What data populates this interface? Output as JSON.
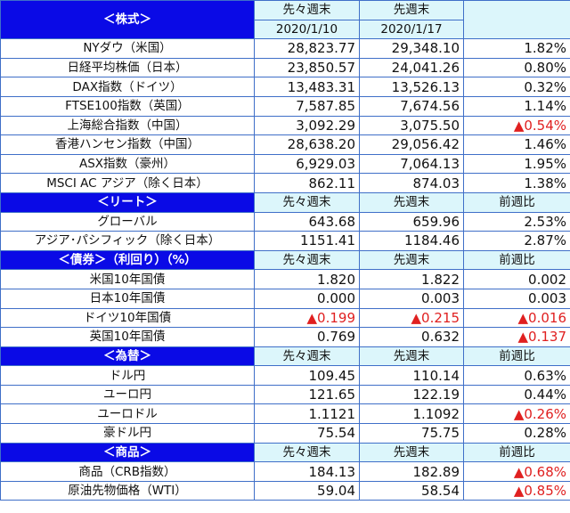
{
  "sections": [
    {
      "title": "＜株式＞",
      "headers": [
        "先々週末",
        "先週末",
        ""
      ],
      "dates": [
        "2020/1/10",
        "2020/1/17"
      ],
      "rows": [
        {
          "label": "NYダウ（米国）",
          "values": [
            "28,823.77",
            "29,348.10",
            "1.82%"
          ]
        },
        {
          "label": "日経平均株価（日本）",
          "values": [
            "23,850.57",
            "24,041.26",
            "0.80%"
          ]
        },
        {
          "label": "DAX指数（ドイツ）",
          "values": [
            "13,483.31",
            "13,526.13",
            "0.32%"
          ]
        },
        {
          "label": "FTSE100指数（英国）",
          "values": [
            "7,587.85",
            "7,674.56",
            "1.14%"
          ]
        },
        {
          "label": "上海総合指数（中国）",
          "values": [
            "3,092.29",
            "3,075.50",
            "▲0.54%"
          ]
        },
        {
          "label": "香港ハンセン指数（中国）",
          "values": [
            "28,638.20",
            "29,056.42",
            "1.46%"
          ]
        },
        {
          "label": "ASX指数（豪州）",
          "values": [
            "6,929.03",
            "7,064.13",
            "1.95%"
          ]
        },
        {
          "label": "MSCI AC アジア（除く日本）",
          "values": [
            "862.11",
            "874.03",
            "1.38%"
          ]
        }
      ]
    },
    {
      "title": "＜リート＞",
      "headers": [
        "先々週末",
        "先週末",
        "前週比"
      ],
      "rows": [
        {
          "label": "グローバル",
          "values": [
            "643.68",
            "659.96",
            "2.53%"
          ]
        },
        {
          "label": "アジア･パシフィック（除く日本）",
          "values": [
            "1151.41",
            "1184.46",
            "2.87%"
          ]
        }
      ]
    },
    {
      "title": "＜債券＞（利回り）（%）",
      "headers": [
        "先々週末",
        "先週末",
        "前週比"
      ],
      "rows": [
        {
          "label": "米国10年国債",
          "values": [
            "1.820",
            "1.822",
            "0.002"
          ]
        },
        {
          "label": "日本10年国債",
          "values": [
            "0.000",
            "0.003",
            "0.003"
          ]
        },
        {
          "label": "ドイツ10年国債",
          "values": [
            "▲0.199",
            "▲0.215",
            "▲0.016"
          ]
        },
        {
          "label": "英国10年国債",
          "values": [
            "0.769",
            "0.632",
            "▲0.137"
          ]
        }
      ]
    },
    {
      "title": "＜為替＞",
      "headers": [
        "先々週末",
        "先週末",
        "前週比"
      ],
      "rows": [
        {
          "label": "ドル円",
          "values": [
            "109.45",
            "110.14",
            "0.63%"
          ]
        },
        {
          "label": "ユーロ円",
          "values": [
            "121.65",
            "122.19",
            "0.44%"
          ]
        },
        {
          "label": "ユーロドル",
          "values": [
            "1.1121",
            "1.1092",
            "▲0.26%"
          ]
        },
        {
          "label": "豪ドル円",
          "values": [
            "75.54",
            "75.75",
            "0.28%"
          ]
        }
      ]
    },
    {
      "title": "＜商品＞",
      "headers": [
        "先々週末",
        "先週末",
        "前週比"
      ],
      "rows": [
        {
          "label": "商品（CRB指数）",
          "values": [
            "184.13",
            "182.89",
            "▲0.68%"
          ]
        },
        {
          "label": "原油先物価格（WTI）",
          "values": [
            "59.04",
            "58.54",
            "▲0.85%"
          ]
        }
      ]
    }
  ],
  "colors": {
    "section_bg": "#0a0ae6",
    "header_bg": "#dcf6fb",
    "border": "#3f6fc8",
    "negative": "#e02020"
  }
}
